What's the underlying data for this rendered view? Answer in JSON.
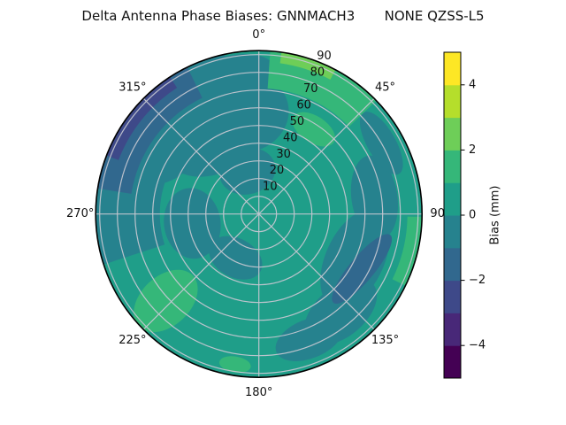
{
  "figure": {
    "title": "Delta Antenna Phase Biases: GNNMACH3       NONE QZSS-L5",
    "background": "#ffffff"
  },
  "chart_data": {
    "type": "polar_contour",
    "title": "Delta Antenna Phase Biases: GNNMACH3       NONE QZSS-L5",
    "angular_unit": "degrees, clockwise from top",
    "angular_ticks": [
      {
        "az": 0,
        "label": "0°"
      },
      {
        "az": 45,
        "label": "45°"
      },
      {
        "az": 90,
        "label": "90"
      },
      {
        "az": 135,
        "label": "135°"
      },
      {
        "az": 180,
        "label": "180°"
      },
      {
        "az": 225,
        "label": "225°"
      },
      {
        "az": 270,
        "label": "270°"
      },
      {
        "az": 315,
        "label": "315°"
      }
    ],
    "radial_ticks": [
      {
        "value": 10,
        "label": "10"
      },
      {
        "value": 20,
        "label": "20"
      },
      {
        "value": 30,
        "label": "30"
      },
      {
        "value": 40,
        "label": "40"
      },
      {
        "value": 50,
        "label": "50"
      },
      {
        "value": 60,
        "label": "60"
      },
      {
        "value": 70,
        "label": "70"
      },
      {
        "value": 80,
        "label": "80"
      },
      {
        "value": 90,
        "label": "90"
      }
    ],
    "radial_label_azimuth_deg": 22.5,
    "rmax": 92,
    "grid": true,
    "grid_color": "#c3c6d0",
    "outline_color": "#000000",
    "colorbar": {
      "label": "Bias (mm)",
      "range": [
        -5,
        5
      ],
      "ticks": [
        {
          "value": 4,
          "label": "4"
        },
        {
          "value": 2,
          "label": "2"
        },
        {
          "value": 0,
          "label": "0"
        },
        {
          "value": -2,
          "label": "−2"
        },
        {
          "value": -4,
          "label": "−4"
        }
      ],
      "band_levels": [
        -5,
        -4,
        -3,
        -2,
        -1,
        0,
        1,
        2,
        3,
        4,
        5
      ],
      "band_colors_bottom_to_top": [
        "#440154",
        "#482878",
        "#3e4989",
        "#31688e",
        "#26828e",
        "#1f9e89",
        "#35b779",
        "#6ece58",
        "#b5de2b",
        "#fde725"
      ]
    },
    "base_band_mm": [
      0,
      1
    ],
    "base_color": "#1f9e89",
    "regions": [
      {
        "shape": "sector",
        "band_mm": [
          -1,
          0
        ],
        "color": "#26828e",
        "az1": 252,
        "az2": 348,
        "r1": 56,
        "r2": 93
      },
      {
        "shape": "ellipse",
        "band_mm": [
          -1,
          0
        ],
        "color": "#26828e",
        "az": 330,
        "r": 55,
        "rx": 62,
        "ry": 50,
        "rot": 0
      },
      {
        "shape": "ellipse",
        "band_mm": [
          -1,
          0
        ],
        "color": "#26828e",
        "az": 352,
        "r": 58,
        "rx": 50,
        "ry": 45,
        "rot": 0
      },
      {
        "shape": "ellipse",
        "band_mm": [
          -1,
          0
        ],
        "color": "#26828e",
        "az": 350,
        "r": 80,
        "rx": 46,
        "ry": 22,
        "rot": 0
      },
      {
        "shape": "ellipse",
        "band_mm": [
          -1,
          0
        ],
        "color": "#26828e",
        "az": 308,
        "r": 68,
        "rx": 55,
        "ry": 42,
        "rot": 0
      },
      {
        "shape": "ellipse",
        "band_mm": [
          -1,
          0
        ],
        "color": "#26828e",
        "az": 262,
        "r": 38,
        "rx": 40,
        "ry": 32,
        "rot": 0
      },
      {
        "shape": "ellipse",
        "band_mm": [
          -1,
          0
        ],
        "color": "#26828e",
        "az": 345,
        "r": 25,
        "rx": 32,
        "ry": 26,
        "rot": 0
      },
      {
        "shape": "ellipse",
        "band_mm": [
          -1,
          0
        ],
        "color": "#26828e",
        "az": 208,
        "r": 28,
        "rx": 32,
        "ry": 22,
        "rot": 0
      },
      {
        "shape": "ellipse",
        "band_mm": [
          -1,
          0
        ],
        "color": "#26828e",
        "az": 82,
        "r": 66,
        "rx": 48,
        "ry": 26,
        "rot": 0
      },
      {
        "shape": "ellipse",
        "band_mm": [
          -1,
          0
        ],
        "color": "#26828e",
        "az": 60,
        "r": 80,
        "rx": 40,
        "ry": 16,
        "rot": 0
      },
      {
        "shape": "ellipse",
        "band_mm": [
          -1,
          0
        ],
        "color": "#26828e",
        "az": 115,
        "r": 60,
        "rx": 60,
        "ry": 33,
        "rot": 0
      },
      {
        "shape": "ellipse",
        "band_mm": [
          -1,
          0
        ],
        "color": "#26828e",
        "az": 140,
        "r": 72,
        "rx": 48,
        "ry": 28,
        "rot": 0
      },
      {
        "shape": "ellipse",
        "band_mm": [
          -1,
          0
        ],
        "color": "#26828e",
        "az": 158,
        "r": 76,
        "rx": 40,
        "ry": 22,
        "rot": 0
      },
      {
        "shape": "sector",
        "band_mm": [
          -2,
          -1
        ],
        "color": "#31688e",
        "az1": 279,
        "az2": 334,
        "r1": 73,
        "r2": 93
      },
      {
        "shape": "ellipse",
        "band_mm": [
          -2,
          -1
        ],
        "color": "#31688e",
        "az": 118,
        "r": 66,
        "rx": 50,
        "ry": 14,
        "rot": 12
      },
      {
        "shape": "sector",
        "band_mm": [
          -3,
          -2
        ],
        "color": "#3e4989",
        "az1": 291,
        "az2": 327,
        "r1": 85,
        "r2": 93
      },
      {
        "shape": "sector",
        "band_mm": [
          1,
          2
        ],
        "color": "#35b779",
        "az1": 4,
        "az2": 46,
        "r1": 71,
        "r2": 93
      },
      {
        "shape": "sector",
        "band_mm": [
          1,
          2
        ],
        "color": "#35b779",
        "az1": 91,
        "az2": 116,
        "r1": 84,
        "r2": 93
      },
      {
        "shape": "ellipse",
        "band_mm": [
          1,
          2
        ],
        "color": "#35b779",
        "az": 33,
        "r": 57,
        "rx": 27,
        "ry": 15,
        "rot": 0
      },
      {
        "shape": "ellipse",
        "band_mm": [
          1,
          2
        ],
        "color": "#35b779",
        "az": 227,
        "r": 72,
        "rx": 28,
        "ry": 42,
        "rot": 0
      },
      {
        "shape": "ellipse",
        "band_mm": [
          1,
          2
        ],
        "color": "#35b779",
        "az": 189,
        "r": 86,
        "rx": 18,
        "ry": 9,
        "rot": 0
      },
      {
        "shape": "sector",
        "band_mm": [
          2,
          3
        ],
        "color": "#6ece58",
        "az1": 8,
        "az2": 28,
        "r1": 86,
        "r2": 93
      }
    ]
  }
}
